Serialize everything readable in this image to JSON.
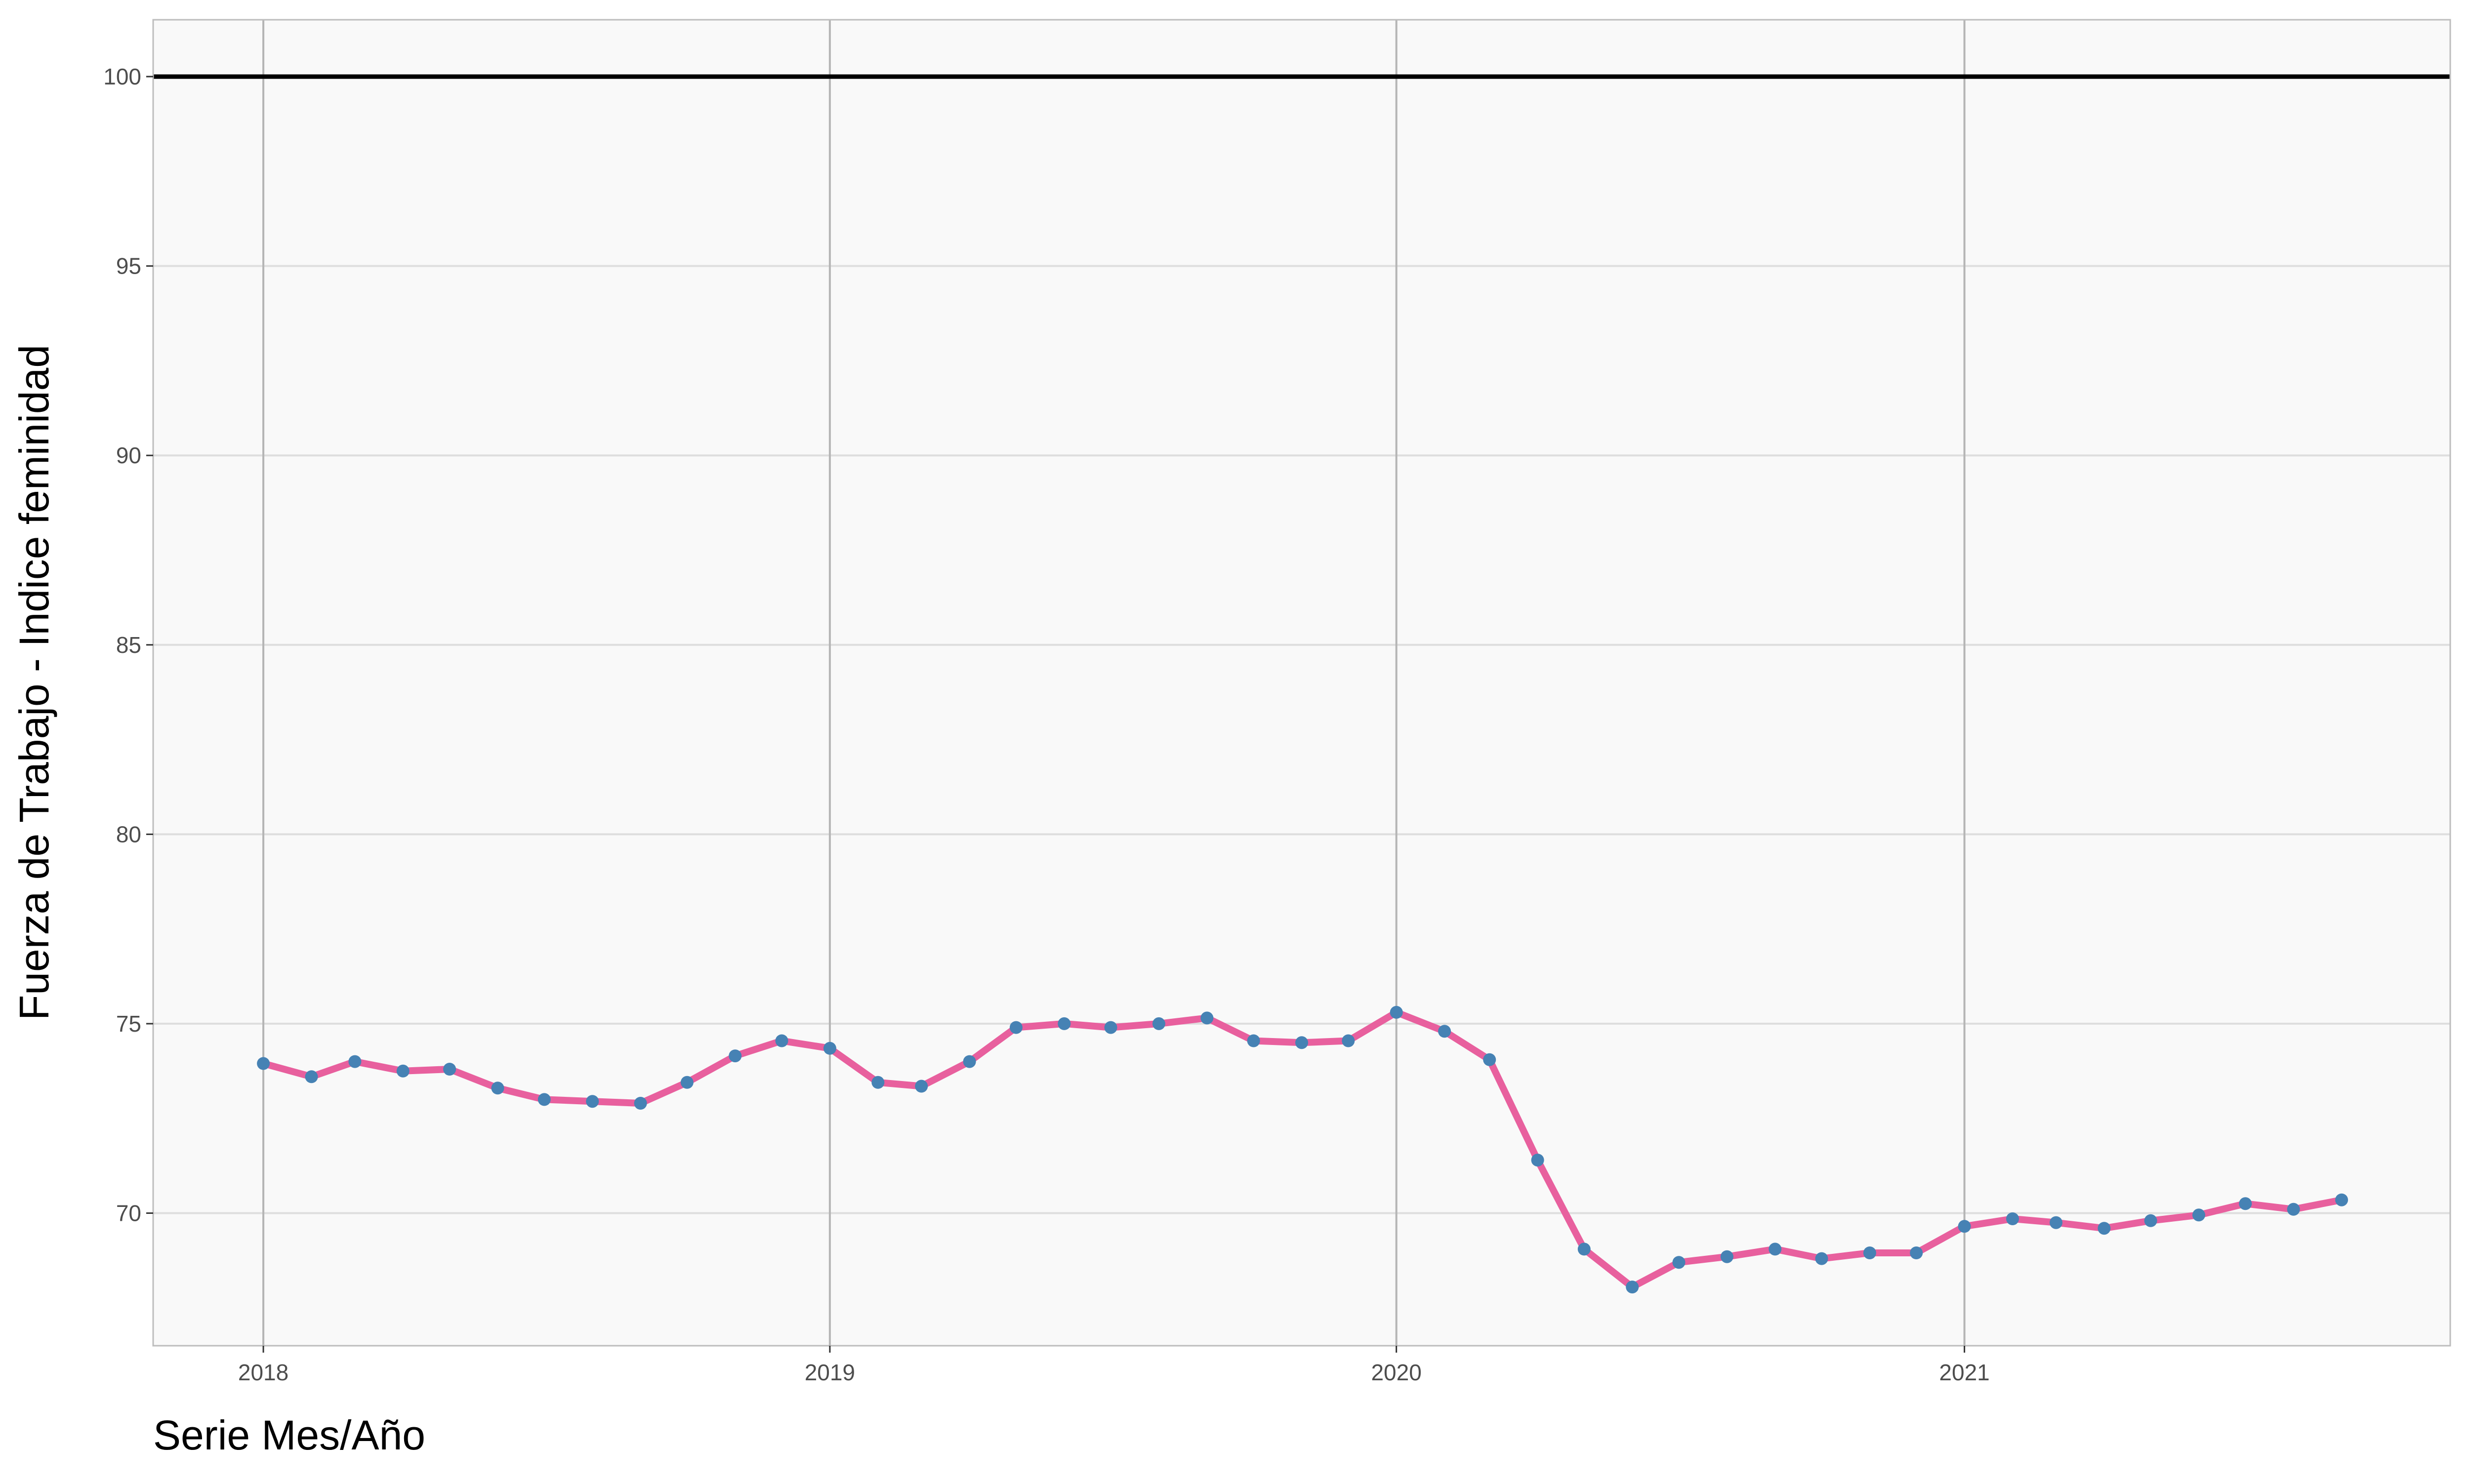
{
  "chart_data": {
    "type": "line",
    "title": "",
    "xlabel": "Serie Mes/Año",
    "ylabel": "Fuerza de Trabajo - Indice feminidad",
    "xlim": [
      "2017-10-22",
      "2021-11-10"
    ],
    "ylim": [
      66.5,
      101.5
    ],
    "x_ticks": [
      "2018",
      "2019",
      "2020",
      "2021"
    ],
    "y_ticks": [
      "70",
      "75",
      "80",
      "85",
      "90",
      "95",
      "100"
    ],
    "reference_line": {
      "y": 100,
      "color": "#000000"
    },
    "grid": true,
    "legend": "none",
    "colors": {
      "panel_background": "#f9f9f9",
      "grid_major_horizontal": "#dedede",
      "grid_major_vertical": "#b5b5b5",
      "panel_border": "#bdbdbd",
      "line": "#e8609e",
      "points": "#4682b4"
    },
    "series": [
      {
        "x": [
          "2018-01",
          "2018-02",
          "2018-03",
          "2018-04",
          "2018-05",
          "2018-06",
          "2018-07",
          "2018-08",
          "2018-09",
          "2018-10",
          "2018-11",
          "2018-12",
          "2019-01",
          "2019-02",
          "2019-03",
          "2019-04",
          "2019-05",
          "2019-06",
          "2019-07",
          "2019-08",
          "2019-09",
          "2019-10",
          "2019-11",
          "2019-12",
          "2020-01",
          "2020-02",
          "2020-03",
          "2020-04",
          "2020-05",
          "2020-06",
          "2020-07",
          "2020-08",
          "2020-09",
          "2020-10",
          "2020-11",
          "2020-12",
          "2021-01",
          "2021-02",
          "2021-03",
          "2021-04",
          "2021-05",
          "2021-06",
          "2021-07",
          "2021-08",
          "2021-09"
        ],
        "values": [
          73.95,
          73.6,
          74.0,
          73.75,
          73.8,
          73.3,
          73.0,
          72.95,
          72.9,
          73.45,
          74.15,
          74.55,
          74.35,
          73.45,
          73.35,
          74.0,
          74.9,
          75.0,
          74.9,
          75.0,
          75.15,
          74.55,
          74.5,
          74.55,
          75.3,
          74.8,
          74.05,
          71.4,
          69.05,
          68.05,
          68.7,
          68.85,
          69.05,
          68.8,
          68.95,
          68.95,
          69.65,
          69.85,
          69.75,
          69.6,
          69.8,
          69.95,
          70.25,
          70.1,
          70.35
        ]
      }
    ]
  }
}
